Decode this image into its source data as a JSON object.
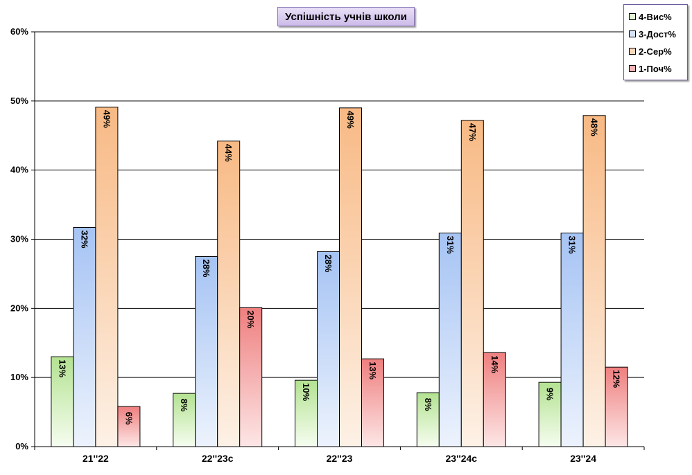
{
  "chart_data": {
    "type": "bar",
    "title": "Успішність учнів школи",
    "categories": [
      "21''22",
      "22''23с",
      "22''23",
      "23''24с",
      "23''24"
    ],
    "series": [
      {
        "name": "4-Вис%",
        "values": [
          13,
          7.7,
          9.6,
          7.8,
          9.3
        ],
        "labels": [
          "13%",
          "8%",
          "10%",
          "8%",
          "9%"
        ],
        "color_top": "#b3e291",
        "color_bottom": "#f6fdf0"
      },
      {
        "name": "3-Дост%",
        "values": [
          31.7,
          27.5,
          28.2,
          30.9,
          30.9
        ],
        "labels": [
          "32%",
          "28%",
          "28%",
          "31%",
          "31%"
        ],
        "color_top": "#a5c3f4",
        "color_bottom": "#edf3fd"
      },
      {
        "name": "2-Сер%",
        "values": [
          49.1,
          44.2,
          49,
          47.2,
          47.9
        ],
        "labels": [
          "49%",
          "44%",
          "49%",
          "47%",
          "48%"
        ],
        "color_top": "#f8b984",
        "color_bottom": "#fdf1e6"
      },
      {
        "name": "1-Поч%",
        "values": [
          5.8,
          20.1,
          12.7,
          13.6,
          11.5
        ],
        "labels": [
          "6%",
          "20%",
          "13%",
          "14%",
          "12%"
        ],
        "color_top": "#ef7f7f",
        "color_bottom": "#fde6e6"
      }
    ],
    "y_ticks": [
      "0%",
      "10%",
      "20%",
      "30%",
      "40%",
      "50%",
      "60%"
    ],
    "ylim": [
      0,
      60
    ],
    "grid": true,
    "legend_position": "top-right"
  }
}
